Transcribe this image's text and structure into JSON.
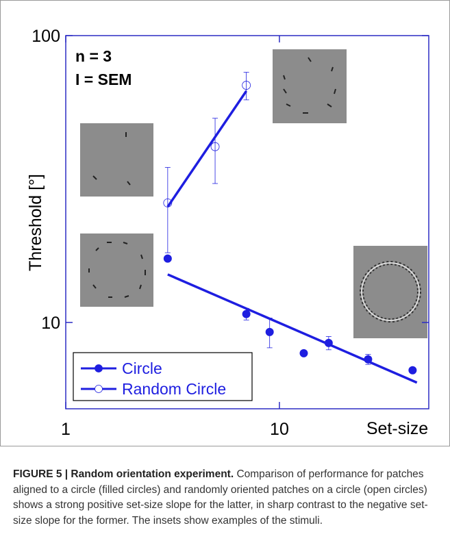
{
  "chart_data": {
    "type": "line",
    "log_x": true,
    "log_y": true,
    "y_label": "Threshold [°]",
    "x_label": "Set-size",
    "annotations": [
      "n = 3",
      "I = SEM"
    ],
    "xlim": [
      1,
      50
    ],
    "ylim": [
      5,
      100
    ],
    "xticks": [
      1,
      10
    ],
    "yticks": [
      10,
      100
    ],
    "frame_color": "#2b2bc4",
    "series": [
      {
        "name": "Circle",
        "color": "#1e1ee0",
        "filled": true,
        "x": [
          3,
          7,
          9,
          13,
          17,
          26,
          42
        ],
        "values": [
          16.7,
          10.7,
          9.26,
          7.81,
          8.48,
          7.44,
          6.81
        ],
        "errors": [
          null,
          0.5,
          1.1,
          null,
          0.45,
          0.3,
          null
        ],
        "fit_x": [
          3,
          44
        ],
        "fit_y": [
          14.7,
          6.17
        ]
      },
      {
        "name": "Random Circle",
        "color": "#1e1ee0",
        "filled": false,
        "x": [
          3,
          5,
          7
        ],
        "values": [
          26.1,
          41.0,
          67.1
        ],
        "errors": [
          8.6,
          10.5,
          7.4
        ],
        "fit_x": [
          3,
          7
        ],
        "fit_y": [
          25.3,
          64.1
        ]
      }
    ]
  },
  "caption": {
    "label": "FIGURE 5 | Random orientation experiment.",
    "text": "Comparison of performance for patches aligned to a circle (filled circles) and randomly oriented patches on a circle (open circles) shows a strong positive set-size slope for the latter, in sharp contrast to the negative set-size slope for the former. The insets show examples of the stimuli."
  }
}
